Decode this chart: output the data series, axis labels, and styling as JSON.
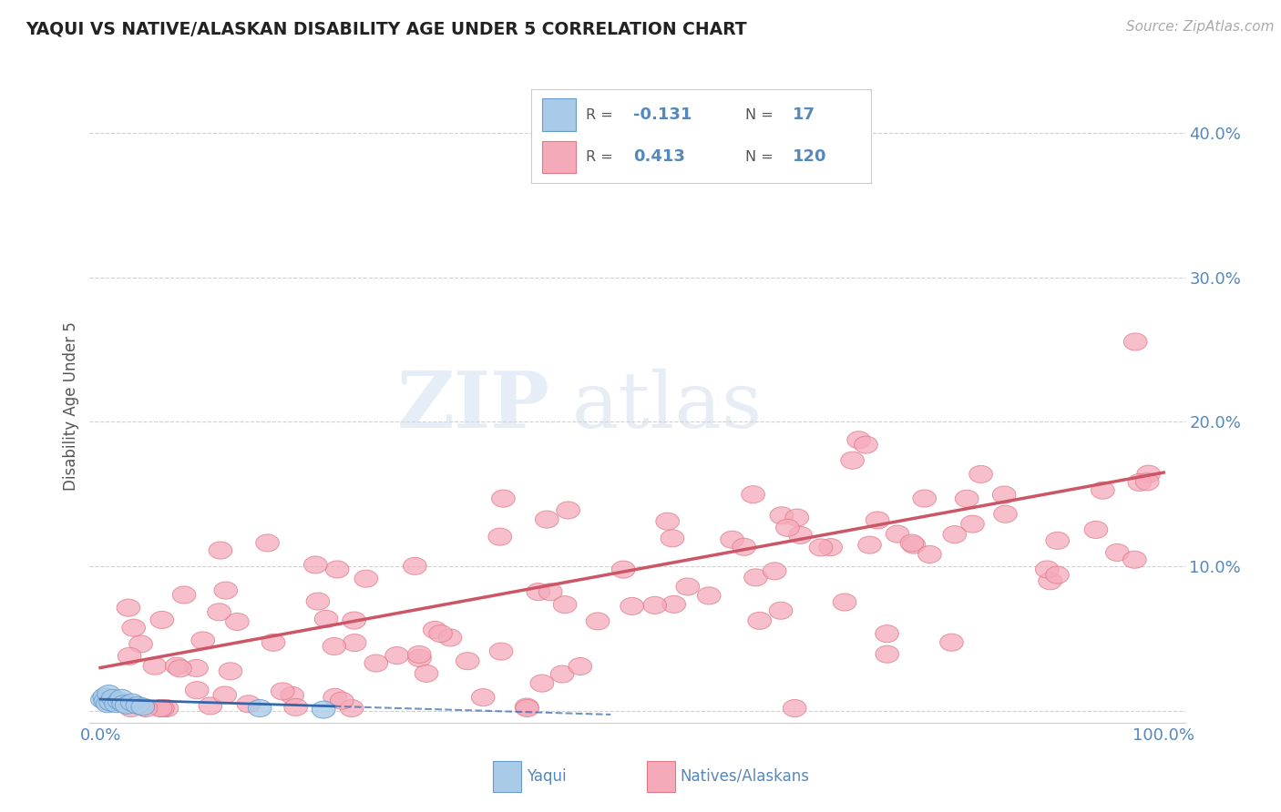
{
  "title": "YAQUI VS NATIVE/ALASKAN DISABILITY AGE UNDER 5 CORRELATION CHART",
  "source": "Source: ZipAtlas.com",
  "ylabel": "Disability Age Under 5",
  "xlim": [
    -0.01,
    1.02
  ],
  "ylim": [
    -0.008,
    0.43
  ],
  "yaqui_R": -0.131,
  "yaqui_N": 17,
  "native_R": 0.413,
  "native_N": 120,
  "yaqui_color": "#aacbe8",
  "yaqui_edge_color": "#6699cc",
  "native_color": "#f5aaba",
  "native_edge_color": "#e07888",
  "yaqui_line_color": "#3366aa",
  "native_line_color": "#cc5566",
  "background_color": "#ffffff",
  "grid_color": "#cccccc",
  "title_color": "#222222",
  "axis_label_color": "#5588bb",
  "watermark_zip": "ZIP",
  "watermark_atlas": "atlas",
  "source_color": "#aaaaaa"
}
